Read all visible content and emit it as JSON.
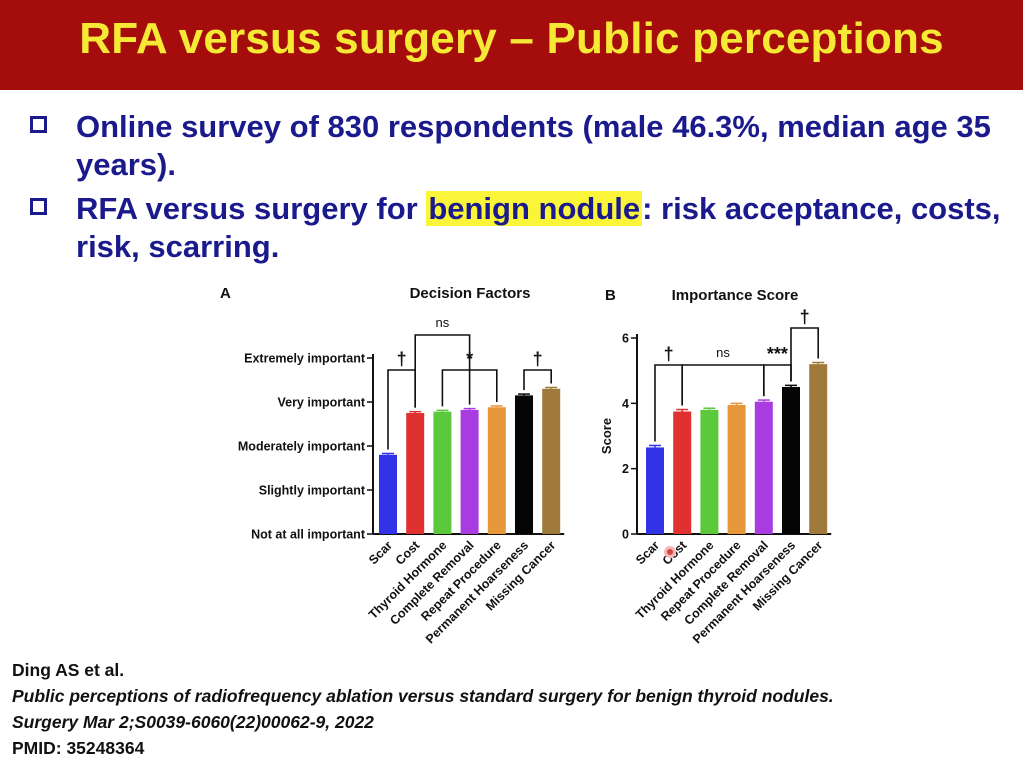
{
  "slide": {
    "title": "RFA versus surgery – Public perceptions",
    "bullet1": "Online survey of 830 respondents (male 46.3%, median age 35 years).",
    "bullet2_pre": "RFA versus surgery for ",
    "bullet2_highlight": "benign nodule",
    "bullet2_post": ": risk acceptance, costs, risk, scarring."
  },
  "reference": {
    "authors": "Ding AS et al.",
    "title": "Public perceptions of radiofrequency ablation versus standard surgery for benign thyroid nodules.",
    "journal": "Surgery Mar 2;S0039-6060(22)00062-9, 2022",
    "pmid": "PMID: 35248364"
  },
  "colors": {
    "title_bg": "#a50d0d",
    "title_text": "#f5e935",
    "bullet_text": "#1a1a8c",
    "highlight": "#fbf53a"
  },
  "chart_data": [
    {
      "panel": "A",
      "type": "bar",
      "title": "Decision Factors",
      "categories": [
        "Scar",
        "Cost",
        "Thyroid Hormone",
        "Complete Removal",
        "Repeat Procedure",
        "Permanent Hoarseness",
        "Missing Cancer"
      ],
      "values": [
        1.8,
        2.75,
        2.78,
        2.82,
        2.88,
        3.15,
        3.3
      ],
      "errors": [
        0.03,
        0.03,
        0.03,
        0.03,
        0.03,
        0.03,
        0.03
      ],
      "colors": [
        "#3232e6",
        "#e03030",
        "#5cc83c",
        "#a83ce0",
        "#e8963a",
        "#050505",
        "#a07a3a"
      ],
      "ylim": [
        0,
        4
      ],
      "y_ticks": [
        0,
        1,
        2,
        3,
        4
      ],
      "y_tick_labels": [
        "Not at all important",
        "Slightly important",
        "Moderately important",
        "Very important",
        "Extremely important"
      ],
      "xlabel": "",
      "ylabel": "",
      "annotations": [
        {
          "from": 0,
          "to": 1,
          "label": "†"
        },
        {
          "from": 1,
          "to": 3,
          "label": "ns"
        },
        {
          "from": 2,
          "to": 4,
          "label": "*"
        },
        {
          "from": 5,
          "to": 6,
          "label": "†"
        }
      ]
    },
    {
      "panel": "B",
      "type": "bar",
      "title": "Importance Score",
      "categories": [
        "Scar",
        "Cost",
        "Thyroid Hormone",
        "Repeat Procedure",
        "Complete Removal",
        "Permanent Hoarseness",
        "Missing Cancer"
      ],
      "values": [
        2.65,
        3.75,
        3.8,
        3.95,
        4.05,
        4.5,
        5.2
      ],
      "errors": [
        0.06,
        0.06,
        0.05,
        0.05,
        0.05,
        0.05,
        0.05
      ],
      "colors": [
        "#3232e6",
        "#e03030",
        "#5cc83c",
        "#e8963a",
        "#a83ce0",
        "#050505",
        "#a07a3a"
      ],
      "ylim": [
        0,
        6
      ],
      "y_ticks": [
        0,
        2,
        4,
        6
      ],
      "y_tick_labels": [
        "0",
        "2",
        "4",
        "6"
      ],
      "xlabel": "",
      "ylabel": "Score",
      "annotations": [
        {
          "from": 0,
          "to": 1,
          "label": "†"
        },
        {
          "from": 1,
          "to": 4,
          "label": "ns"
        },
        {
          "from": 4,
          "to": 5,
          "label": "***"
        },
        {
          "from": 5,
          "to": 6,
          "label": "†"
        }
      ]
    }
  ]
}
